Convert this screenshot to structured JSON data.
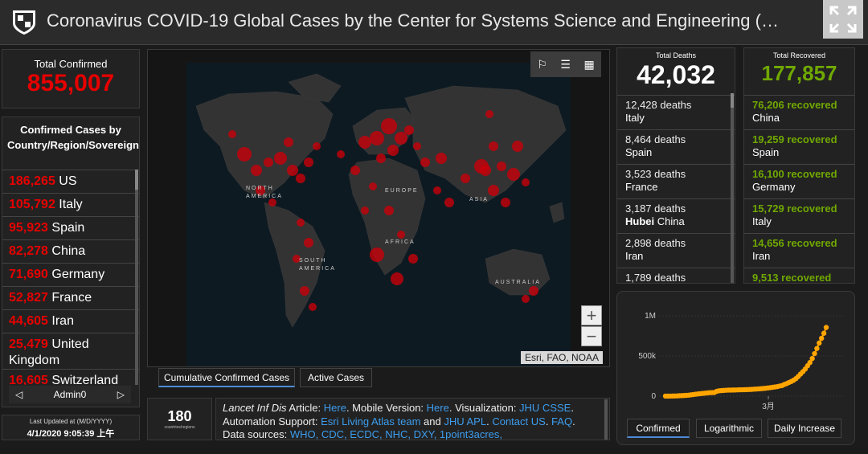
{
  "header": {
    "title": "Coronavirus COVID-19 Global Cases by the Center for Systems Science and Engineering (…"
  },
  "total_confirmed": {
    "label": "Total Confirmed",
    "value": "855,007"
  },
  "confirmed_list": {
    "title": "Confirmed Cases by Country/Region/Sovereignty",
    "items": [
      {
        "num": "186,265",
        "name": "US"
      },
      {
        "num": "105,792",
        "name": "Italy"
      },
      {
        "num": "95,923",
        "name": "Spain"
      },
      {
        "num": "82,278",
        "name": "China"
      },
      {
        "num": "71,690",
        "name": "Germany"
      },
      {
        "num": "52,827",
        "name": "France"
      },
      {
        "num": "44,605",
        "name": "Iran"
      },
      {
        "num": "25,479",
        "name": "United Kingdom"
      },
      {
        "num": "16,605",
        "name": "Switzerland"
      }
    ],
    "pager_label": "Admin0"
  },
  "last_updated": {
    "label": "Last Updated at (M/D/YYYY)",
    "value": "4/1/2020 9:05:39 上午"
  },
  "map": {
    "labels": {
      "na": "NORTH AMERICA",
      "eu": "EUROPE",
      "asia": "ASIA",
      "af": "AFRICA",
      "sa": "SOUTH AMERICA",
      "au": "AUSTRALIA"
    },
    "attribution": "Esri, FAO, NOAA",
    "zoom_in": "+",
    "zoom_out": "−",
    "tabs": [
      "Cumulative Confirmed Cases",
      "Active Cases"
    ]
  },
  "countries_count": {
    "value": "180",
    "label": "countries/regions"
  },
  "info": {
    "l1_a": "Lancet Inf Dis",
    "l1_b": " Article: ",
    "l1_c": "Here",
    "l1_d": ". Mobile Version: ",
    "l1_e": "Here",
    "l1_f": ". Visualization: ",
    "l1_g": "JHU CSSE",
    "l1_h": ".",
    "l2_a": "Automation Support: ",
    "l2_b": "Esri Living Atlas team",
    "l2_c": " and ",
    "l2_d": "JHU APL",
    "l2_e": ". ",
    "l2_f": "Contact US",
    "l2_g": ". ",
    "l2_h": "FAQ",
    "l2_i": ".",
    "l3_a": "Data sources: ",
    "l3_b": "WHO, CDC, ECDC, NHC, DXY, 1point3acres,"
  },
  "deaths": {
    "label": "Total Deaths",
    "value": "42,032",
    "items": [
      {
        "num": "12,428 deaths",
        "place": "Italy"
      },
      {
        "num": "8,464 deaths",
        "place": "Spain"
      },
      {
        "num": "3,523 deaths",
        "place": "France"
      },
      {
        "num": "3,187 deaths",
        "bold": "Hubei",
        "place": " China"
      },
      {
        "num": "2,898 deaths",
        "place": "Iran"
      },
      {
        "num": "1,789 deaths",
        "place": ""
      }
    ]
  },
  "recovered": {
    "label": "Total Recovered",
    "value": "177,857",
    "items": [
      {
        "num": "76,206 recovered",
        "place": "China"
      },
      {
        "num": "19,259 recovered",
        "place": "Spain"
      },
      {
        "num": "16,100 recovered",
        "place": "Germany"
      },
      {
        "num": "15,729 recovered",
        "place": "Italy"
      },
      {
        "num": "14,656 recovered",
        "place": "Iran"
      },
      {
        "num": "9,513 recovered",
        "place": ""
      }
    ]
  },
  "chart_tabs": [
    "Confirmed",
    "Logarithmic",
    "Daily Increase"
  ],
  "chart_data": {
    "type": "line",
    "title": "",
    "xlabel": "",
    "ylabel": "",
    "x_tick_labels": [
      "3月"
    ],
    "y_tick_labels": [
      "0",
      "500k",
      "1M"
    ],
    "ylim": [
      0,
      1000000
    ],
    "series": [
      {
        "color": "#ffa500",
        "x": [
          1,
          2,
          3,
          4,
          5,
          6,
          7,
          8,
          9,
          10,
          11,
          12,
          13,
          14,
          15,
          16,
          17,
          18,
          19,
          20,
          21,
          22,
          23,
          24,
          25,
          26,
          27,
          28,
          29,
          30,
          31,
          32,
          33,
          34,
          35,
          36,
          37,
          38,
          39,
          40,
          41,
          42,
          43,
          44,
          45,
          46,
          47,
          48,
          49,
          50,
          51,
          52,
          53,
          54,
          55,
          56,
          57,
          58,
          59,
          60,
          61,
          62,
          63,
          64,
          65,
          66,
          67,
          68,
          69,
          70
        ],
        "values": [
          555,
          654,
          941,
          1434,
          2118,
          2927,
          5578,
          6166,
          8234,
          9927,
          12038,
          16787,
          19881,
          23892,
          27635,
          30817,
          34391,
          37120,
          40150,
          42762,
          44802,
          45221,
          60368,
          66885,
          69030,
          71224,
          73258,
          75136,
          75639,
          76197,
          76819,
          78572,
          78958,
          79561,
          80406,
          81388,
          82746,
          84112,
          86604,
          88585,
          90443,
          93016,
          95314,
          98425,
          102050,
          106099,
          109991,
          114458,
          118475,
          125849,
          131615,
          145193,
          156114,
          169509,
          182585,
          198131,
          218040,
          244933,
          275680,
          305036,
          337462,
          377808,
          418041,
          468049,
          529614,
          593291,
          661185,
          720140,
          782389,
          855007
        ]
      }
    ]
  },
  "colors": {
    "confirmed": "#e60000",
    "recovered": "#70a800",
    "chart_line": "#ffa500",
    "link": "#3d9dee",
    "map_bubble": "#c8000a"
  }
}
